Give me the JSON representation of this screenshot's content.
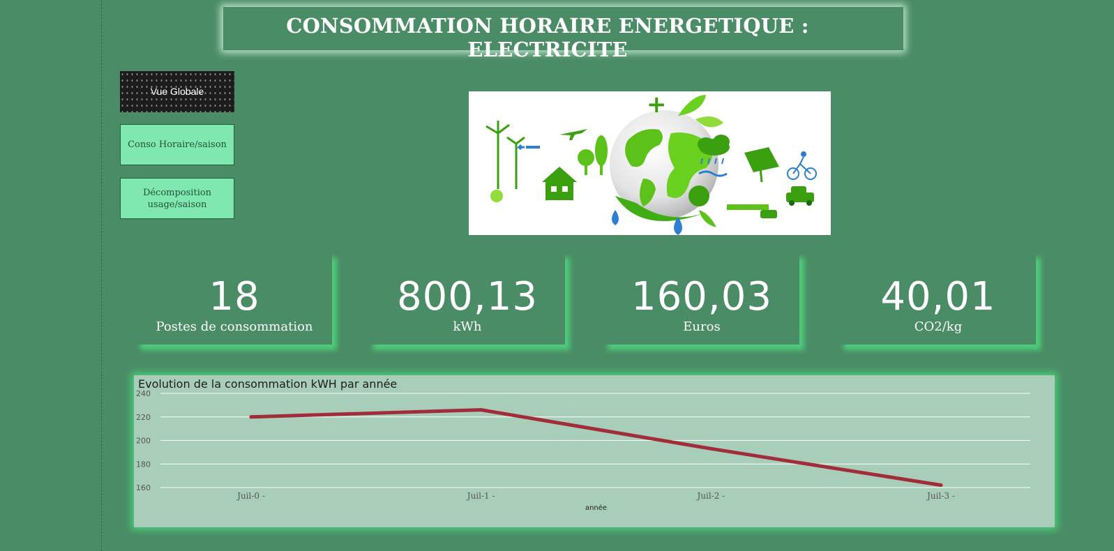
{
  "header": {
    "title": "CONSOMMATION HORAIRE ENERGETIQUE : ELECTRICITE"
  },
  "nav": {
    "vue_globale": "Vue Globale",
    "conso_horaire": "Conso Horaire/saison",
    "decomposition": "Décomposition usage/saison"
  },
  "kpis": [
    {
      "value": "18",
      "label": "Postes de consommation"
    },
    {
      "value": "800,13",
      "label": "kWh"
    },
    {
      "value": "160,03",
      "label": "Euros"
    },
    {
      "value": "40,01",
      "label": "CO2/kg"
    }
  ],
  "colors": {
    "background": "#4a8c66",
    "line": "#a12d3a",
    "chart_bg": "#a8cdb8",
    "glow": "#4fdc82"
  },
  "chart_data": {
    "type": "line",
    "title": "Evolution de la consommation kWH par année",
    "xlabel": "année",
    "ylabel": "",
    "categories": [
      "Juil-0 -",
      "Juil-1 -",
      "Juil-2 -",
      "Juil-3 -"
    ],
    "series": [
      {
        "values": [
          220,
          226,
          193,
          162
        ]
      }
    ],
    "ylim": [
      160,
      240
    ],
    "yticks": [
      160,
      180,
      200,
      220,
      240
    ],
    "grid": true,
    "legend": "none"
  }
}
